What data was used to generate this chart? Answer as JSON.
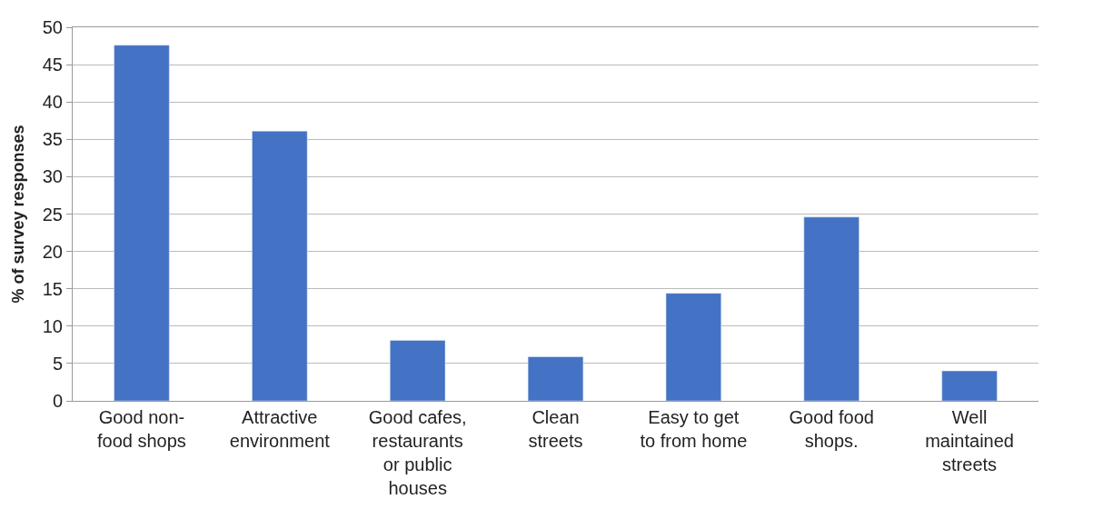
{
  "chart_data": {
    "type": "bar",
    "ylabel": "% of survey responses",
    "categories": [
      "Good non-food shops",
      "Attractive environment",
      "Good cafes, restaurants or public houses",
      "Clean streets",
      "Easy to get to from home",
      "Good food shops.",
      "Well maintained streets"
    ],
    "values": [
      47.6,
      36.1,
      8.1,
      5.9,
      14.4,
      24.6,
      4.0
    ],
    "color": "#4472c4",
    "ylim": [
      0,
      50
    ],
    "yticks": [
      0,
      5,
      10,
      15,
      20,
      25,
      30,
      35,
      40,
      45,
      50
    ],
    "grid": "y"
  }
}
